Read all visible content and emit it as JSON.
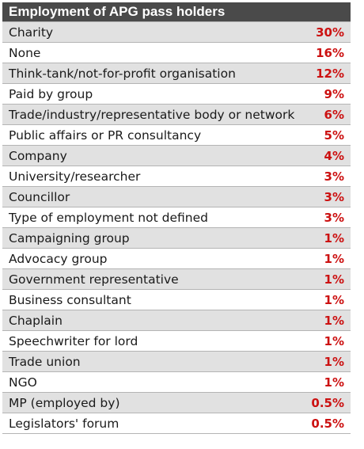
{
  "chart_data": {
    "type": "table",
    "title": "Employment of APG pass holders",
    "categories": [
      "Charity",
      "None",
      "Think-tank/not-for-profit organisation",
      "Paid by group",
      "Trade/industry/representative body or network",
      "Public affairs or PR consultancy",
      "Company",
      "University/researcher",
      "Councillor",
      "Type of employment not defined",
      "Campaigning group",
      "Advocacy group",
      "Government representative",
      "Business consultant",
      "Chaplain",
      "Speechwriter for lord",
      "Trade union",
      "NGO",
      "MP (employed by)",
      "Legislators' forum"
    ],
    "value_labels": [
      "30%",
      "16%",
      "12%",
      "9%",
      "6%",
      "5%",
      "4%",
      "3%",
      "3%",
      "3%",
      "1%",
      "1%",
      "1%",
      "1%",
      "1%",
      "1%",
      "1%",
      "1%",
      "0.5%",
      "0.5%"
    ],
    "values": [
      30,
      16,
      12,
      9,
      6,
      5,
      4,
      3,
      3,
      3,
      1,
      1,
      1,
      1,
      1,
      1,
      1,
      1,
      0.5,
      0.5
    ],
    "colors": {
      "header_bg": "#4a4a4a",
      "value_text": "#cc1111",
      "shaded_row": "#e1e1e1"
    }
  }
}
